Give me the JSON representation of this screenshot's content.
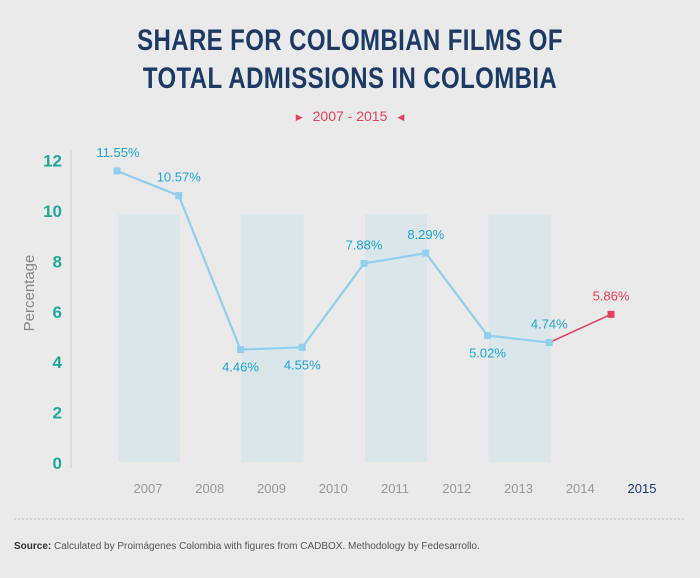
{
  "title_line1": "SHARE FOR COLOMBIAN FILMS OF",
  "title_line2": "TOTAL ADMISSIONS IN COLOMBIA",
  "subtitle": "2007 - 2015",
  "source_label": "Source:",
  "source_text": " Calculated by Proimágenes Colombia with figures from CADBOX. Methodology by Fedesarrollo.",
  "colors": {
    "title": "#1b3a66",
    "line": "#8ed0ee",
    "highlight": "#e8405a",
    "label": "#1aa7d3",
    "yTick": "#1fa99a",
    "band": "#d4e4ea",
    "lastYear": "#1b3a66"
  },
  "chart_data": {
    "type": "line",
    "title": "SHARE FOR COLOMBIAN FILMS OF TOTAL ADMISSIONS IN COLOMBIA",
    "subtitle": "2007 - 2015",
    "xlabel": "",
    "ylabel": "Percentage",
    "ylim": [
      0,
      12
    ],
    "yticks": [
      0,
      2,
      4,
      6,
      8,
      10,
      12
    ],
    "categories": [
      "2007",
      "2008",
      "2009",
      "2010",
      "2011",
      "2012",
      "2013",
      "2014",
      "2015"
    ],
    "values": [
      11.55,
      10.57,
      4.46,
      4.55,
      7.88,
      8.29,
      5.02,
      4.74,
      5.86
    ],
    "labels": [
      "11.55%",
      "10.57%",
      "4.46%",
      "4.55%",
      "7.88%",
      "8.29%",
      "5.02%",
      "4.74%",
      "5.86%"
    ],
    "highlight_last": true,
    "grid": false
  }
}
